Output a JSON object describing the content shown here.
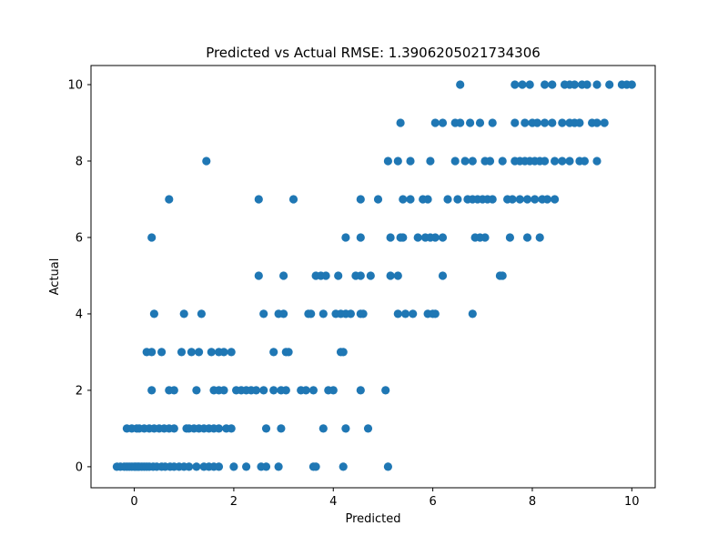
{
  "chart_data": {
    "type": "scatter",
    "title": "Predicted vs Actual  RMSE: 1.3906205021734306",
    "xlabel": "Predicted",
    "ylabel": "Actual",
    "xlim": [
      -0.87,
      10.47
    ],
    "ylim": [
      -0.55,
      10.5
    ],
    "xticks": [
      0,
      2,
      4,
      6,
      8,
      10
    ],
    "yticks": [
      0,
      2,
      4,
      6,
      8,
      10
    ],
    "grid": false,
    "marker_color": "#1f77b4",
    "series": [
      {
        "points": [
          [
            -0.35,
            0
          ],
          [
            -0.28,
            0
          ],
          [
            -0.2,
            0
          ],
          [
            -0.15,
            0
          ],
          [
            -0.1,
            0
          ],
          [
            -0.05,
            0
          ],
          [
            0.0,
            0
          ],
          [
            0.03,
            0
          ],
          [
            0.07,
            0
          ],
          [
            0.1,
            0
          ],
          [
            0.15,
            0
          ],
          [
            0.2,
            0
          ],
          [
            0.25,
            0
          ],
          [
            0.3,
            0
          ],
          [
            0.38,
            0
          ],
          [
            0.45,
            0
          ],
          [
            0.55,
            0
          ],
          [
            0.62,
            0
          ],
          [
            0.72,
            0
          ],
          [
            0.8,
            0
          ],
          [
            0.9,
            0
          ],
          [
            1.0,
            0
          ],
          [
            1.1,
            0
          ],
          [
            1.25,
            0
          ],
          [
            1.4,
            0
          ],
          [
            1.5,
            0
          ],
          [
            1.6,
            0
          ],
          [
            1.7,
            0
          ],
          [
            2.0,
            0
          ],
          [
            2.25,
            0
          ],
          [
            2.55,
            0
          ],
          [
            2.65,
            0
          ],
          [
            2.9,
            0
          ],
          [
            3.6,
            0
          ],
          [
            3.65,
            0
          ],
          [
            4.2,
            0
          ],
          [
            5.1,
            0
          ],
          [
            -0.15,
            1
          ],
          [
            -0.05,
            1
          ],
          [
            0.05,
            1
          ],
          [
            0.1,
            1
          ],
          [
            0.2,
            1
          ],
          [
            0.3,
            1
          ],
          [
            0.4,
            1
          ],
          [
            0.5,
            1
          ],
          [
            0.6,
            1
          ],
          [
            0.7,
            1
          ],
          [
            0.8,
            1
          ],
          [
            1.05,
            1
          ],
          [
            1.1,
            1
          ],
          [
            1.2,
            1
          ],
          [
            1.3,
            1
          ],
          [
            1.4,
            1
          ],
          [
            1.5,
            1
          ],
          [
            1.6,
            1
          ],
          [
            1.7,
            1
          ],
          [
            1.85,
            1
          ],
          [
            1.95,
            1
          ],
          [
            2.65,
            1
          ],
          [
            2.95,
            1
          ],
          [
            3.8,
            1
          ],
          [
            4.25,
            1
          ],
          [
            4.7,
            1
          ],
          [
            0.35,
            2
          ],
          [
            0.7,
            2
          ],
          [
            0.8,
            2
          ],
          [
            1.25,
            2
          ],
          [
            1.6,
            2
          ],
          [
            1.7,
            2
          ],
          [
            1.8,
            2
          ],
          [
            2.05,
            2
          ],
          [
            2.15,
            2
          ],
          [
            2.25,
            2
          ],
          [
            2.35,
            2
          ],
          [
            2.45,
            2
          ],
          [
            2.6,
            2
          ],
          [
            2.8,
            2
          ],
          [
            2.95,
            2
          ],
          [
            3.05,
            2
          ],
          [
            3.35,
            2
          ],
          [
            3.45,
            2
          ],
          [
            3.6,
            2
          ],
          [
            3.9,
            2
          ],
          [
            4.0,
            2
          ],
          [
            4.55,
            2
          ],
          [
            5.05,
            2
          ],
          [
            0.25,
            3
          ],
          [
            0.35,
            3
          ],
          [
            0.55,
            3
          ],
          [
            0.95,
            3
          ],
          [
            1.15,
            3
          ],
          [
            1.3,
            3
          ],
          [
            1.55,
            3
          ],
          [
            1.7,
            3
          ],
          [
            1.8,
            3
          ],
          [
            1.95,
            3
          ],
          [
            2.8,
            3
          ],
          [
            3.05,
            3
          ],
          [
            3.1,
            3
          ],
          [
            4.15,
            3
          ],
          [
            4.2,
            3
          ],
          [
            0.4,
            4
          ],
          [
            1.0,
            4
          ],
          [
            1.35,
            4
          ],
          [
            2.6,
            4
          ],
          [
            2.9,
            4
          ],
          [
            3.0,
            4
          ],
          [
            3.5,
            4
          ],
          [
            3.55,
            4
          ],
          [
            3.8,
            4
          ],
          [
            4.05,
            4
          ],
          [
            4.15,
            4
          ],
          [
            4.25,
            4
          ],
          [
            4.35,
            4
          ],
          [
            4.55,
            4
          ],
          [
            4.6,
            4
          ],
          [
            5.3,
            4
          ],
          [
            5.45,
            4
          ],
          [
            5.6,
            4
          ],
          [
            5.9,
            4
          ],
          [
            6.0,
            4
          ],
          [
            6.05,
            4
          ],
          [
            6.8,
            4
          ],
          [
            2.5,
            5
          ],
          [
            3.0,
            5
          ],
          [
            3.65,
            5
          ],
          [
            3.75,
            5
          ],
          [
            3.85,
            5
          ],
          [
            4.1,
            5
          ],
          [
            4.45,
            5
          ],
          [
            4.55,
            5
          ],
          [
            4.75,
            5
          ],
          [
            5.15,
            5
          ],
          [
            5.3,
            5
          ],
          [
            6.2,
            5
          ],
          [
            7.35,
            5
          ],
          [
            7.4,
            5
          ],
          [
            0.35,
            6
          ],
          [
            4.25,
            6
          ],
          [
            4.55,
            6
          ],
          [
            5.15,
            6
          ],
          [
            5.35,
            6
          ],
          [
            5.4,
            6
          ],
          [
            5.7,
            6
          ],
          [
            5.85,
            6
          ],
          [
            5.95,
            6
          ],
          [
            6.05,
            6
          ],
          [
            6.2,
            6
          ],
          [
            6.85,
            6
          ],
          [
            6.95,
            6
          ],
          [
            7.05,
            6
          ],
          [
            7.55,
            6
          ],
          [
            7.9,
            6
          ],
          [
            8.15,
            6
          ],
          [
            0.7,
            7
          ],
          [
            2.5,
            7
          ],
          [
            3.2,
            7
          ],
          [
            4.55,
            7
          ],
          [
            4.9,
            7
          ],
          [
            5.4,
            7
          ],
          [
            5.55,
            7
          ],
          [
            5.8,
            7
          ],
          [
            5.9,
            7
          ],
          [
            6.3,
            7
          ],
          [
            6.5,
            7
          ],
          [
            6.7,
            7
          ],
          [
            6.8,
            7
          ],
          [
            6.9,
            7
          ],
          [
            7.0,
            7
          ],
          [
            7.1,
            7
          ],
          [
            7.2,
            7
          ],
          [
            7.5,
            7
          ],
          [
            7.6,
            7
          ],
          [
            7.75,
            7
          ],
          [
            7.9,
            7
          ],
          [
            8.05,
            7
          ],
          [
            8.2,
            7
          ],
          [
            8.3,
            7
          ],
          [
            8.45,
            7
          ],
          [
            1.45,
            8
          ],
          [
            5.1,
            8
          ],
          [
            5.3,
            8
          ],
          [
            5.55,
            8
          ],
          [
            5.95,
            8
          ],
          [
            6.45,
            8
          ],
          [
            6.65,
            8
          ],
          [
            6.8,
            8
          ],
          [
            7.05,
            8
          ],
          [
            7.15,
            8
          ],
          [
            7.4,
            8
          ],
          [
            7.65,
            8
          ],
          [
            7.75,
            8
          ],
          [
            7.85,
            8
          ],
          [
            7.95,
            8
          ],
          [
            8.05,
            8
          ],
          [
            8.15,
            8
          ],
          [
            8.25,
            8
          ],
          [
            8.45,
            8
          ],
          [
            8.6,
            8
          ],
          [
            8.75,
            8
          ],
          [
            8.95,
            8
          ],
          [
            9.05,
            8
          ],
          [
            9.3,
            8
          ],
          [
            5.35,
            9
          ],
          [
            6.05,
            9
          ],
          [
            6.2,
            9
          ],
          [
            6.45,
            9
          ],
          [
            6.55,
            9
          ],
          [
            6.75,
            9
          ],
          [
            6.95,
            9
          ],
          [
            7.2,
            9
          ],
          [
            7.65,
            9
          ],
          [
            7.85,
            9
          ],
          [
            8.0,
            9
          ],
          [
            8.1,
            9
          ],
          [
            8.25,
            9
          ],
          [
            8.4,
            9
          ],
          [
            8.6,
            9
          ],
          [
            8.75,
            9
          ],
          [
            8.85,
            9
          ],
          [
            8.95,
            9
          ],
          [
            9.2,
            9
          ],
          [
            9.3,
            9
          ],
          [
            9.45,
            9
          ],
          [
            6.55,
            10
          ],
          [
            7.65,
            10
          ],
          [
            7.8,
            10
          ],
          [
            7.95,
            10
          ],
          [
            8.25,
            10
          ],
          [
            8.4,
            10
          ],
          [
            8.65,
            10
          ],
          [
            8.75,
            10
          ],
          [
            8.85,
            10
          ],
          [
            9.0,
            10
          ],
          [
            9.1,
            10
          ],
          [
            9.3,
            10
          ],
          [
            9.55,
            10
          ],
          [
            9.8,
            10
          ],
          [
            9.9,
            10
          ],
          [
            10.0,
            10
          ]
        ]
      }
    ]
  }
}
